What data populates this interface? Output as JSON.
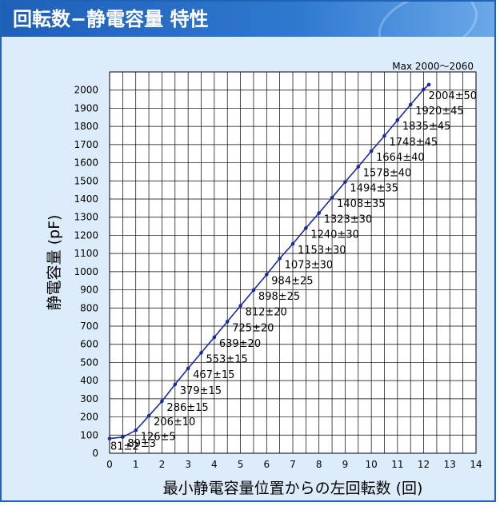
{
  "header": {
    "title": "回転数−静電容量 特性"
  },
  "chart_data": {
    "type": "line",
    "xlabel": "最小静電容量位置からの左回転数 (回)",
    "ylabel": "静電容量 (pF)",
    "xlim": [
      0,
      14
    ],
    "ylim": [
      0,
      2100
    ],
    "x_ticks": [
      "0",
      "1",
      "2",
      "3",
      "4",
      "5",
      "6",
      "7",
      "8",
      "9",
      "10",
      "11",
      "12",
      "13",
      "14"
    ],
    "y_ticks": [
      "0",
      "100",
      "200",
      "300",
      "400",
      "500",
      "600",
      "700",
      "800",
      "900",
      "1000",
      "1100",
      "1200",
      "1300",
      "1400",
      "1500",
      "1600",
      "1700",
      "1800",
      "1900",
      "2000"
    ],
    "grid": true,
    "color": "#1a2aa0",
    "points": [
      {
        "x": 0,
        "y": 81,
        "label": "81±2"
      },
      {
        "x": 0.5,
        "y": 89,
        "label": "89±3"
      },
      {
        "x": 1,
        "y": 126,
        "label": "126±5"
      },
      {
        "x": 1.5,
        "y": 206,
        "label": "206±10"
      },
      {
        "x": 2,
        "y": 286,
        "label": "286±15"
      },
      {
        "x": 2.5,
        "y": 379,
        "label": "379±15"
      },
      {
        "x": 3,
        "y": 467,
        "label": "467±15"
      },
      {
        "x": 3.5,
        "y": 553,
        "label": "553±15"
      },
      {
        "x": 4,
        "y": 639,
        "label": "639±20"
      },
      {
        "x": 4.5,
        "y": 725,
        "label": "725±20"
      },
      {
        "x": 5,
        "y": 812,
        "label": "812±20"
      },
      {
        "x": 5.5,
        "y": 898,
        "label": "898±25"
      },
      {
        "x": 6,
        "y": 984,
        "label": "984±25"
      },
      {
        "x": 6.5,
        "y": 1073,
        "label": "1073±30"
      },
      {
        "x": 7,
        "y": 1153,
        "label": "1153±30"
      },
      {
        "x": 7.5,
        "y": 1240,
        "label": "1240±30"
      },
      {
        "x": 8,
        "y": 1323,
        "label": "1323±30"
      },
      {
        "x": 8.5,
        "y": 1408,
        "label": "1408±35"
      },
      {
        "x": 9,
        "y": 1494,
        "label": "1494±35"
      },
      {
        "x": 9.5,
        "y": 1578,
        "label": "1578±40"
      },
      {
        "x": 10,
        "y": 1664,
        "label": "1664±40"
      },
      {
        "x": 10.5,
        "y": 1748,
        "label": "1748±45"
      },
      {
        "x": 11,
        "y": 1835,
        "label": "1835±45"
      },
      {
        "x": 11.5,
        "y": 1920,
        "label": "1920±45"
      },
      {
        "x": 12,
        "y": 2004,
        "label": "2004±50"
      },
      {
        "x": 12.2,
        "y": 2030,
        "label": ""
      }
    ],
    "annotations": [
      {
        "text": "Max 2000～2060",
        "x": 12.2,
        "y": 2030
      }
    ]
  }
}
